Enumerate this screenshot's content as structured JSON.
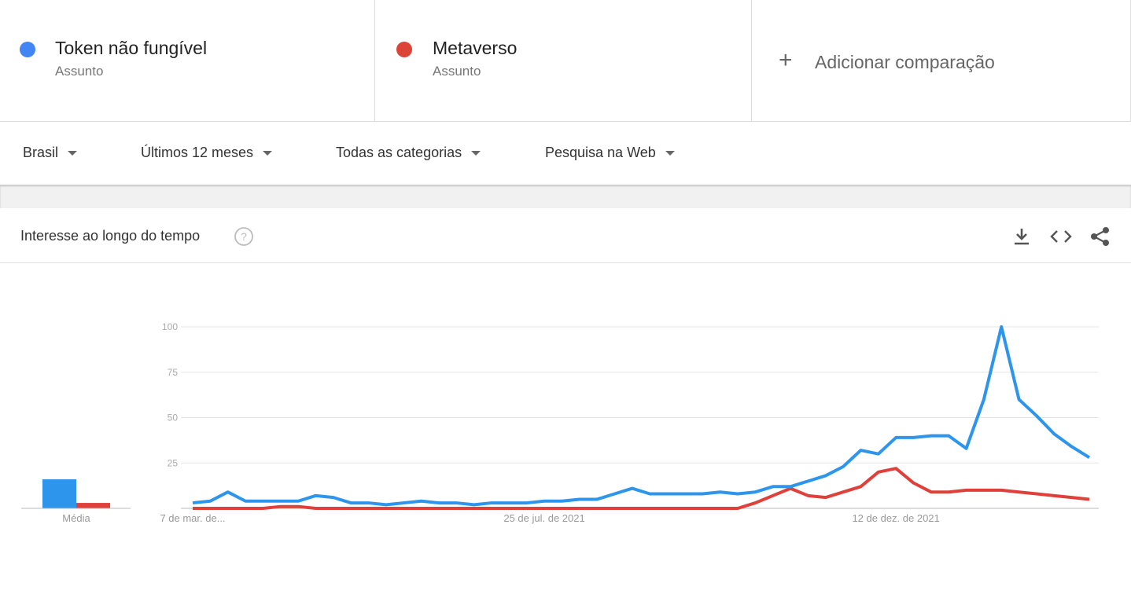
{
  "compare": {
    "subtitles": [
      "Assunto",
      "Assunto"
    ],
    "add": "Adicionar comparação"
  },
  "filters": [
    "Brasil",
    "Últimos 12 meses",
    "Todas as categorias",
    "Pesquisa na Web"
  ],
  "chart_data": {
    "type": "line",
    "title": "Interesse ao longo do tempo",
    "average_label": "Média",
    "categories": [
      "7 de mar. de...",
      null,
      null,
      null,
      null,
      null,
      null,
      null,
      null,
      null,
      null,
      null,
      null,
      null,
      null,
      null,
      null,
      null,
      null,
      null,
      "25 de jul. de 2021",
      null,
      null,
      null,
      null,
      null,
      null,
      null,
      null,
      null,
      null,
      null,
      null,
      null,
      null,
      null,
      null,
      null,
      null,
      null,
      "12 de dez. de 2021",
      null,
      null,
      null,
      null,
      null,
      null,
      null,
      null,
      null,
      null,
      null
    ],
    "series": [
      {
        "name": "Token não fungível",
        "color": "#2d95ec",
        "dot_color": "#4285f4",
        "average": 16,
        "values": [
          3,
          4,
          9,
          4,
          4,
          4,
          4,
          7,
          6,
          3,
          3,
          2,
          3,
          4,
          3,
          3,
          2,
          3,
          3,
          3,
          4,
          4,
          5,
          5,
          8,
          11,
          8,
          8,
          8,
          8,
          9,
          8,
          9,
          12,
          12,
          15,
          18,
          23,
          32,
          30,
          39,
          39,
          40,
          40,
          33,
          60,
          100,
          60,
          51,
          41,
          34,
          28
        ]
      },
      {
        "name": "Metaverso",
        "color": "#e0403a",
        "dot_color": "#db4437",
        "average": 3,
        "values": [
          0,
          0,
          0,
          0,
          0,
          1,
          1,
          0,
          0,
          0,
          0,
          0,
          0,
          0,
          0,
          0,
          0,
          0,
          0,
          0,
          0,
          0,
          0,
          0,
          0,
          0,
          0,
          0,
          0,
          0,
          0,
          0,
          3,
          7,
          11,
          7,
          6,
          9,
          12,
          20,
          22,
          14,
          9,
          9,
          10,
          10,
          10,
          9,
          8,
          7,
          6,
          5
        ]
      }
    ],
    "ylim": [
      0,
      100
    ],
    "yticks": [
      25,
      50,
      75,
      100
    ],
    "grid": true
  }
}
